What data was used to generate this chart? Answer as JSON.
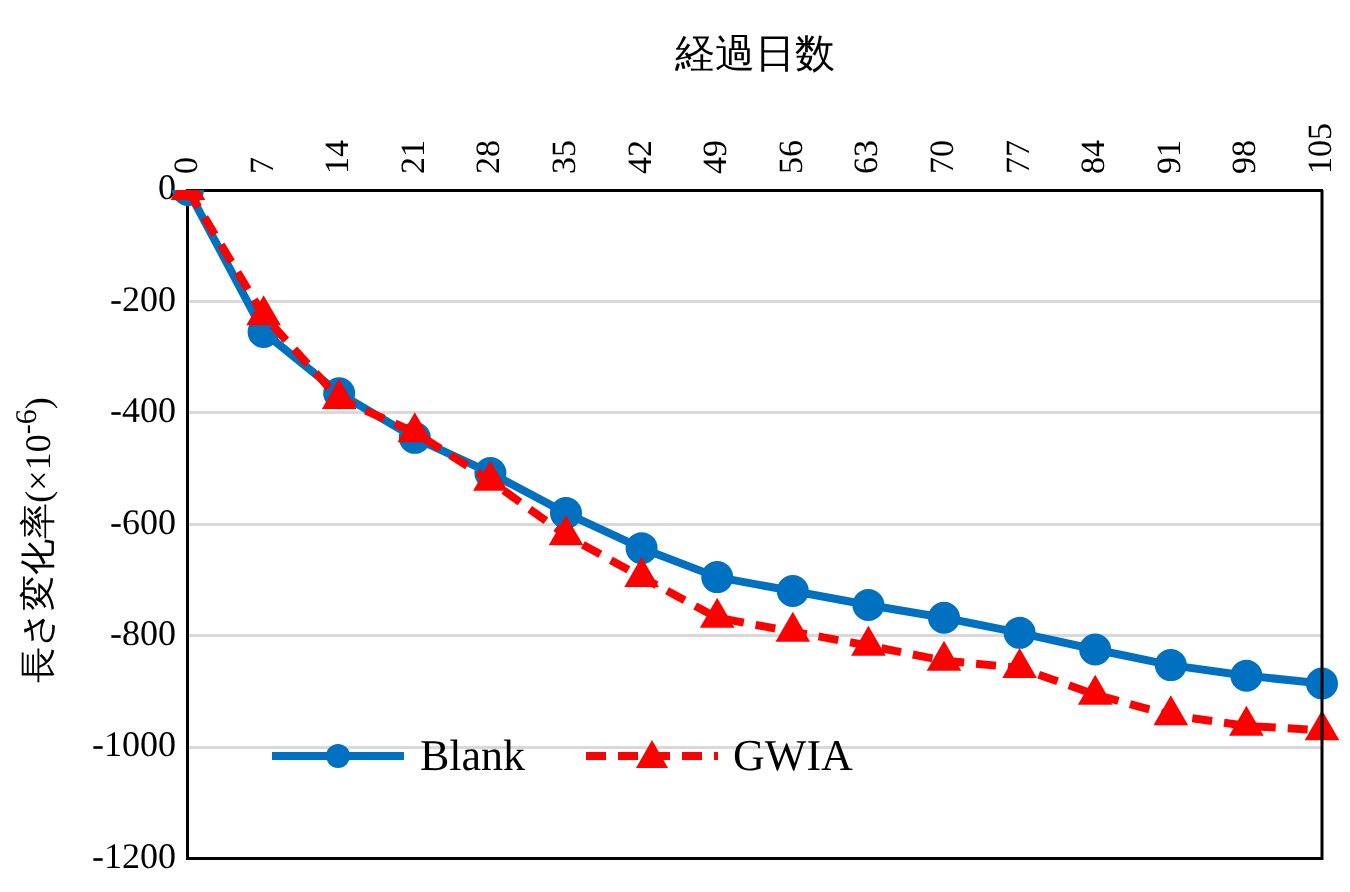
{
  "chart_data": {
    "type": "line",
    "xlabel": "経過日数",
    "ylabel": "長さ変化率(×10$^{-6}$)",
    "categories": [
      "0",
      "7",
      "14",
      "21",
      "28",
      "35",
      "42",
      "49",
      "56",
      "63",
      "70",
      "77",
      "84",
      "91",
      "98",
      "105"
    ],
    "series": [
      {
        "name": "Blank",
        "color": "#0070c0",
        "marker": "circle",
        "line_style": "solid",
        "values": [
          0,
          -255,
          -365,
          -445,
          -508,
          -580,
          -643,
          -695,
          -720,
          -745,
          -768,
          -795,
          -825,
          -853,
          -872,
          -886
        ]
      },
      {
        "name": "GWIA",
        "color": "#ff0000",
        "marker": "triangle",
        "line_style": "dashed",
        "values": [
          0,
          -225,
          -375,
          -435,
          -522,
          -620,
          -695,
          -768,
          -793,
          -818,
          -845,
          -858,
          -906,
          -943,
          -962,
          -970
        ]
      }
    ],
    "ylim": [
      -1200,
      0
    ],
    "yticks": [
      0,
      -200,
      -400,
      -600,
      -800,
      -1000,
      -1200
    ],
    "grid": "y",
    "legend": "bottom left"
  }
}
